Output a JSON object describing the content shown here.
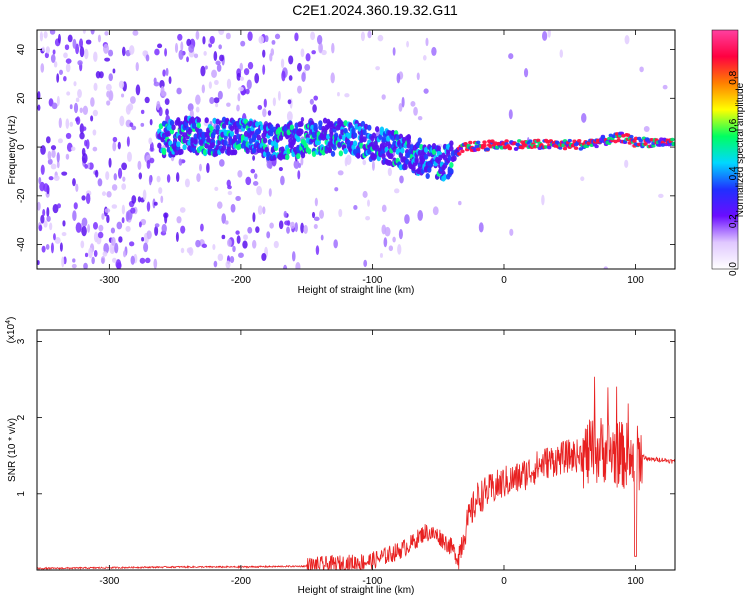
{
  "title": "C2E1.2024.360.19.32.G11",
  "chart_data": [
    {
      "type": "heatmap",
      "xlabel": "Height of straight line (km)",
      "ylabel": "Frequency (Hz)",
      "xlim": [
        -355,
        130
      ],
      "ylim": [
        -50,
        48
      ],
      "xticks": [
        -300,
        -200,
        -100,
        0,
        100
      ],
      "yticks": [
        -40,
        -20,
        0,
        20,
        40
      ],
      "colorbar": {
        "label": "Normalized spectral amplitude",
        "range": [
          0.0,
          1.0
        ],
        "ticks": [
          0.0,
          0.2,
          0.4,
          0.6,
          0.8
        ],
        "colors": [
          "#ffffff",
          "#e0c8ff",
          "#6a0dff",
          "#2030ff",
          "#00d8ff",
          "#00ff60",
          "#ffff00",
          "#ff7f00",
          "#ff0040",
          "#ff40a0"
        ]
      },
      "ridge": {
        "x": [
          -260,
          -240,
          -220,
          -200,
          -180,
          -160,
          -140,
          -120,
          -100,
          -80,
          -70,
          -60,
          -50,
          -40,
          -30,
          0,
          30,
          60,
          70,
          80,
          90,
          100,
          130
        ],
        "y": [
          3,
          5,
          4,
          5,
          2,
          3,
          4,
          4,
          2,
          -1,
          -3,
          -5,
          -7,
          -5,
          0,
          1,
          1,
          1,
          2,
          3,
          4,
          2,
          2
        ]
      }
    },
    {
      "type": "line",
      "xlabel": "Height of straight line (km)",
      "ylabel": "SNR (10 * v/v)",
      "yscale_label": "(x10",
      "yscale_exp": "4",
      "xlim": [
        -355,
        130
      ],
      "ylim": [
        0,
        3.15
      ],
      "xticks": [
        -300,
        -200,
        -100,
        0,
        100
      ],
      "yticks": [
        1,
        2,
        3
      ],
      "color": "#e82020",
      "series": [
        {
          "x": [
            -355,
            -300,
            -250,
            -200,
            -150,
            -120,
            -100,
            -80,
            -70,
            -60,
            -50,
            -40,
            -35,
            -30,
            -25,
            -20,
            -10,
            0,
            10,
            20,
            30,
            40,
            50,
            60,
            70,
            75,
            80,
            90,
            95,
            100,
            105,
            110,
            120,
            130
          ],
          "y": [
            0.02,
            0.03,
            0.04,
            0.04,
            0.05,
            0.08,
            0.12,
            0.25,
            0.35,
            0.5,
            0.45,
            0.3,
            0.15,
            0.5,
            0.75,
            0.95,
            1.05,
            1.15,
            1.2,
            1.3,
            1.4,
            1.45,
            1.5,
            1.5,
            1.55,
            1.6,
            1.55,
            1.5,
            1.5,
            1.45,
            1.5,
            1.45,
            1.45,
            1.42
          ]
        }
      ]
    }
  ]
}
